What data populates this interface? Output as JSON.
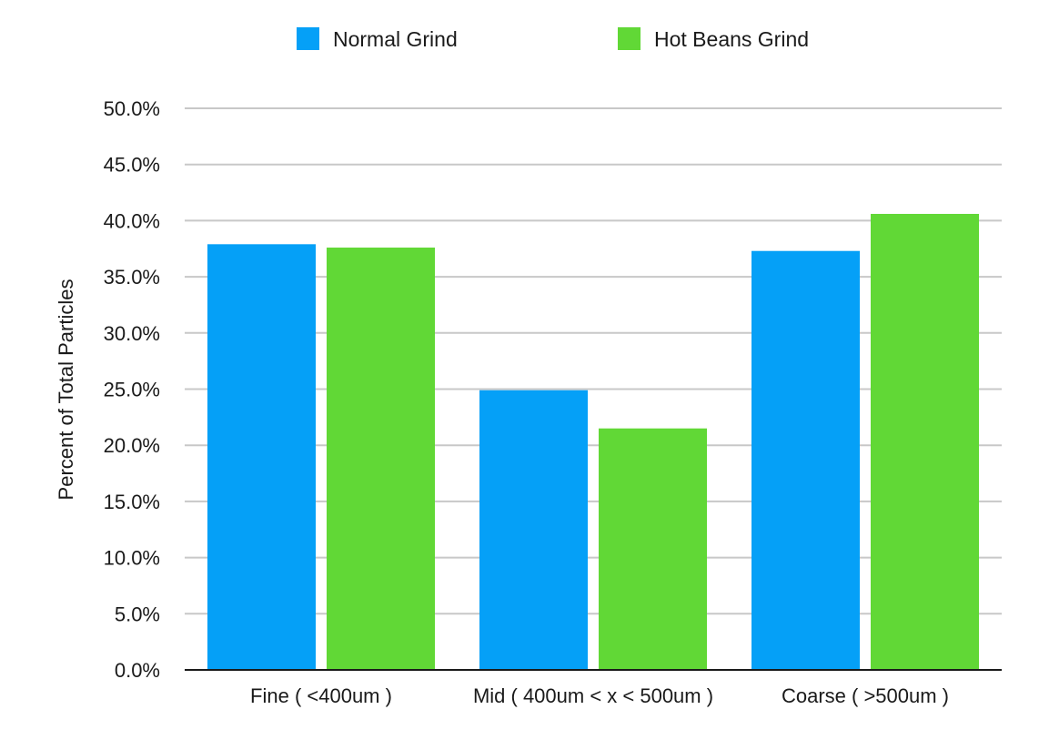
{
  "chart_data": {
    "type": "bar",
    "title": "",
    "xlabel": "",
    "ylabel": "Percent of Total Particles",
    "categories": [
      "Fine ( <400um )",
      "Mid ( 400um < x < 500um )",
      "Coarse ( >500um )"
    ],
    "series": [
      {
        "name": "Normal Grind",
        "color": "#05a0f7",
        "values": [
          37.9,
          24.9,
          37.3
        ]
      },
      {
        "name": "Hot Beans Grind",
        "color": "#61d836",
        "values": [
          37.6,
          21.5,
          40.6
        ]
      }
    ],
    "ylim": [
      0,
      50
    ],
    "yticks": [
      "0.0%",
      "5.0%",
      "10.0%",
      "15.0%",
      "20.0%",
      "25.0%",
      "30.0%",
      "35.0%",
      "40.0%",
      "45.0%",
      "50.0%"
    ],
    "grid": true,
    "legend_position": "top-center",
    "colors": {
      "gridline": "#c8c8c8",
      "axis": "#1a1a1a"
    }
  }
}
